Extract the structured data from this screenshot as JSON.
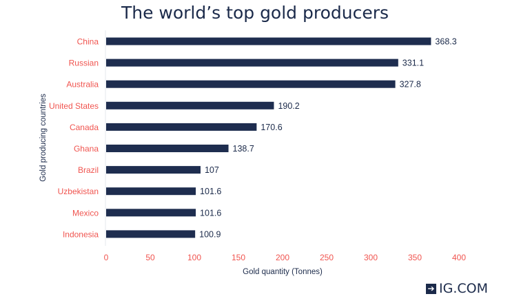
{
  "chart_data": {
    "type": "bar",
    "orientation": "horizontal",
    "title": "The world’s top gold producers",
    "xlabel": "Gold quantity (Tonnes)",
    "ylabel": "Gold producing countries",
    "categories": [
      "China",
      "Russian",
      "Australia",
      "United States",
      "Canada",
      "Ghana",
      "Brazil",
      "Uzbekistan",
      "Mexico",
      "Indonesia"
    ],
    "values": [
      368.3,
      331.1,
      327.8,
      190.2,
      170.6,
      138.7,
      107,
      101.6,
      101.6,
      100.9
    ],
    "value_labels": [
      "368.3",
      "331.1",
      "327.8",
      "190.2",
      "170.6",
      "138.7",
      "107",
      "101.6",
      "101.6",
      "100.9"
    ],
    "xlim": [
      0,
      400
    ],
    "xticks": [
      0,
      50,
      100,
      150,
      200,
      250,
      300,
      350,
      400
    ],
    "grid": false,
    "colors": {
      "bar": "#1e2d4f",
      "category_label": "#f0544f",
      "tick_label": "#f0544f",
      "text": "#1b2a4a"
    }
  },
  "brand": {
    "logo_text": "IG.COM",
    "logo_icon": "arrow-right-icon"
  }
}
